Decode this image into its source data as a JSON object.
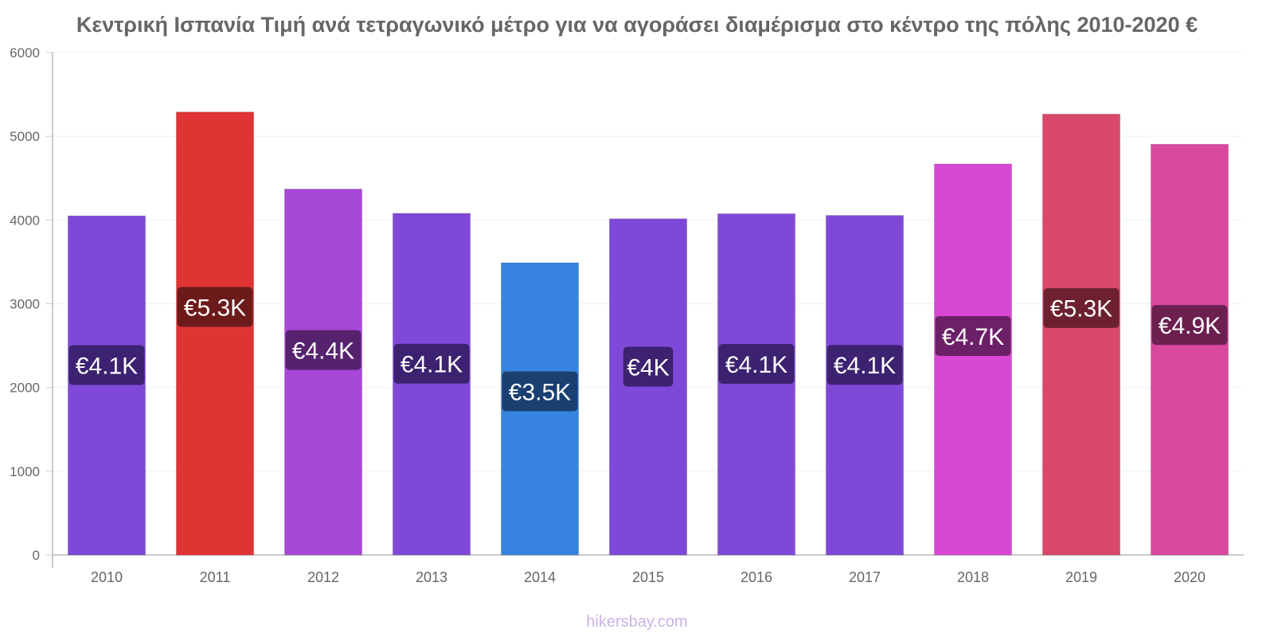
{
  "chart_data": {
    "type": "bar",
    "title": "Κεντρική Ισπανία Τιμή ανά τετραγωνικό μέτρο για να αγοράσει διαμέρισμα στο κέντρο της πόλης 2010-2020 €",
    "categories": [
      "2010",
      "2011",
      "2012",
      "2013",
      "2014",
      "2015",
      "2016",
      "2017",
      "2018",
      "2019",
      "2020"
    ],
    "values": [
      4050,
      5290,
      4370,
      4080,
      3490,
      4015,
      4075,
      4055,
      4670,
      5265,
      4905
    ],
    "data_labels": [
      "€4.1K",
      "€5.3K",
      "€4.4K",
      "€4.1K",
      "€3.5K",
      "€4K",
      "€4.1K",
      "€4.1K",
      "€4.7K",
      "€5.3K",
      "€4.9K"
    ],
    "bar_colors": [
      "#8048d8",
      "#e03434",
      "#a848d8",
      "#8048d8",
      "#3684e0",
      "#8048d8",
      "#8048d8",
      "#8048d8",
      "#d848d4",
      "#d84868",
      "#d8489c"
    ],
    "label_bg_colors": [
      "#3c2270",
      "#6c1a1a",
      "#56226e",
      "#3c2270",
      "#1a4072",
      "#3c2270",
      "#3c2270",
      "#3c2270",
      "#6c2068",
      "#6c2030",
      "#6c2050"
    ],
    "ylim": [
      0,
      6000
    ],
    "yticks": [
      0,
      1000,
      2000,
      3000,
      4000,
      5000,
      6000
    ],
    "xlabel": "",
    "ylabel": "",
    "grid": true,
    "legend": "none"
  },
  "watermark": "hikersbay.com"
}
